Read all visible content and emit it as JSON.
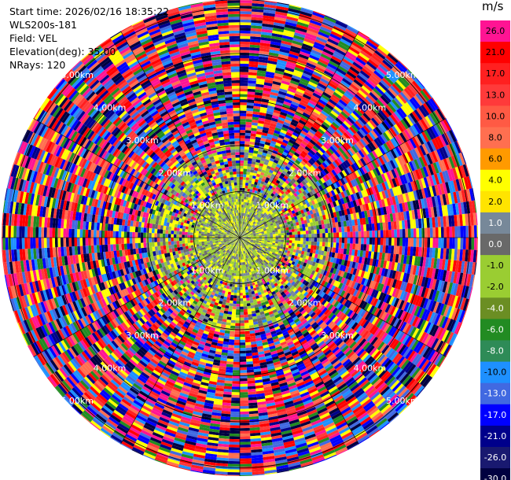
{
  "header": {
    "start_time": "Start time: 2026/02/16 18:35:22",
    "station": "WLS200s-181",
    "field": "Field: VEL",
    "elevation": "Elevation(deg): 35.00",
    "nrays": "NRays: 120"
  },
  "colorbar": {
    "unit": "m/s",
    "levels": [
      {
        "label": "26.0",
        "color": "#ff1493"
      },
      {
        "label": "21.0",
        "color": "#ff0000"
      },
      {
        "label": "17.0",
        "color": "#ff2020"
      },
      {
        "label": "13.0",
        "color": "#ff3a3a"
      },
      {
        "label": "10.0",
        "color": "#ff5a44"
      },
      {
        "label": "8.0",
        "color": "#ff6f50"
      },
      {
        "label": "6.0",
        "color": "#ff9a00"
      },
      {
        "label": "4.0",
        "color": "#ffff00"
      },
      {
        "label": "2.0",
        "color": "#ffe400"
      },
      {
        "label": "1.0",
        "color": "#778899"
      },
      {
        "label": "0.0",
        "color": "#696969"
      },
      {
        "label": "-1.0",
        "color": "#9acd32"
      },
      {
        "label": "-2.0",
        "color": "#9acd32"
      },
      {
        "label": "-4.0",
        "color": "#6b8e23"
      },
      {
        "label": "-6.0",
        "color": "#228b22"
      },
      {
        "label": "-8.0",
        "color": "#2e8b57"
      },
      {
        "label": "-10.0",
        "color": "#1e90ff"
      },
      {
        "label": "-13.0",
        "color": "#4169e1"
      },
      {
        "label": "-17.0",
        "color": "#0000ff"
      },
      {
        "label": "-21.0",
        "color": "#00008b"
      },
      {
        "label": "-26.0",
        "color": "#191970"
      },
      {
        "label": "-30.0",
        "color": "#000040"
      }
    ]
  },
  "chart_data": {
    "type": "heatmap",
    "subtype": "polar-ppi",
    "field": "VEL",
    "nrays": 120,
    "range_rings_km": [
      1.0,
      2.0,
      3.0,
      4.0,
      5.0
    ],
    "ring_labels": [
      "1.00km",
      "2.00km",
      "3.00km",
      "4.00km",
      "5.00km"
    ],
    "max_range_km": 5.7,
    "unit": "m/s",
    "color_levels": [
      26.0,
      21.0,
      17.0,
      13.0,
      10.0,
      8.0,
      6.0,
      4.0,
      2.0,
      1.0,
      0.0,
      -1.0,
      -2.0,
      -4.0,
      -6.0,
      -8.0,
      -10.0,
      -13.0,
      -17.0,
      -21.0,
      -26.0,
      -30.0
    ],
    "near_range_values": [
      -2.0,
      0.0,
      4.0,
      1.0,
      -1.0
    ],
    "far_range_values": [
      26.0,
      -21.0,
      4.0,
      -17.0,
      13.0,
      -10.0,
      21.0,
      -6.0,
      8.0,
      -30.0,
      17.0,
      -13.0
    ]
  }
}
